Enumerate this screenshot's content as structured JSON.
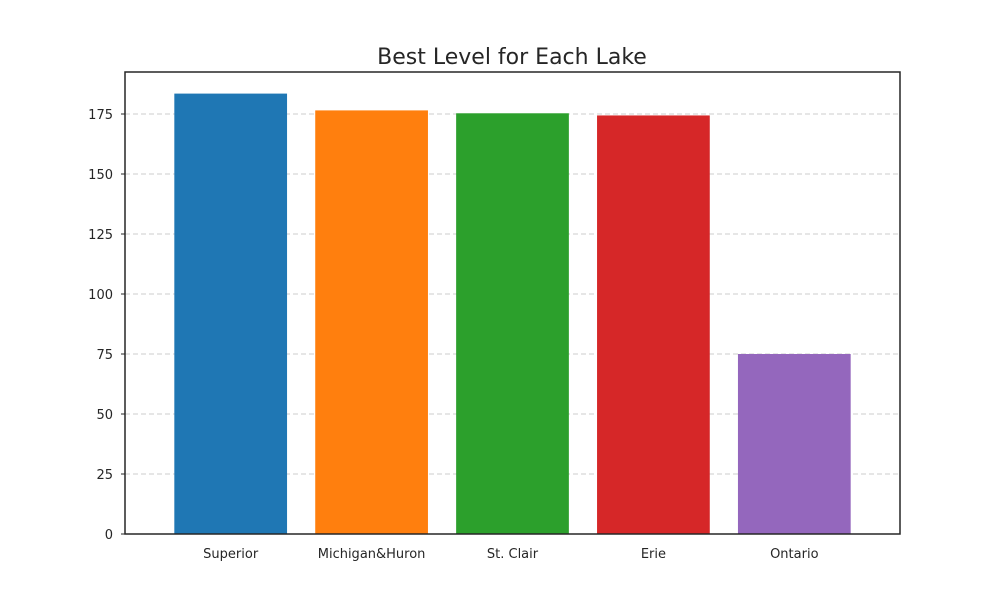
{
  "chart_data": {
    "type": "bar",
    "title": "Best Level for Each Lake",
    "xlabel": "",
    "ylabel": "",
    "categories": [
      "Superior",
      "Michigan&Huron",
      "St. Clair",
      "Erie",
      "Ontario"
    ],
    "values": [
      183.5,
      176.5,
      175.3,
      174.4,
      75.0
    ],
    "colors": [
      "#1f77b4",
      "#ff7f0e",
      "#2ca02c",
      "#d62728",
      "#9467bd"
    ],
    "ylim": [
      0,
      192.5
    ],
    "yticks": [
      0,
      25,
      50,
      75,
      100,
      125,
      150,
      175
    ],
    "grid": true,
    "grid_axis": "y",
    "grid_style": "dashed",
    "legend": "none"
  }
}
